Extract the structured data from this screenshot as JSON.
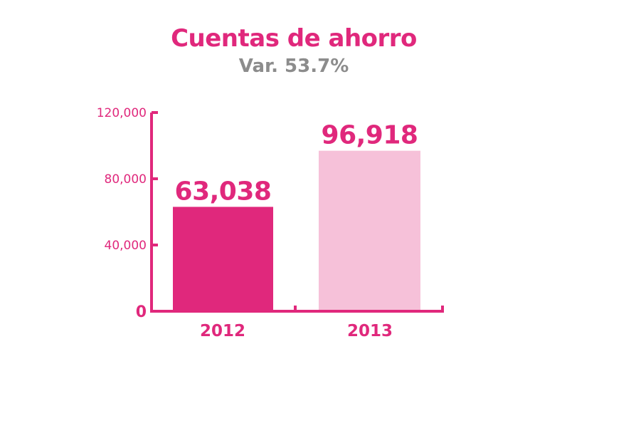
{
  "colors": {
    "accent": "#e0287c",
    "bar_2012": "#e0287c",
    "bar_2013": "#f6c1d9",
    "subtitle": "#8c8c8c"
  },
  "chart_data": {
    "type": "bar",
    "title": "Cuentas de ahorro",
    "subtitle": "Var. 53.7%",
    "categories": [
      "2012",
      "2013"
    ],
    "values": [
      63038,
      96918
    ],
    "value_labels": [
      "63,038",
      "96,918"
    ],
    "ylim": [
      0,
      120000
    ],
    "yticks": [
      0,
      40000,
      80000,
      120000
    ],
    "ytick_labels": [
      "0",
      "40,000",
      "80,000",
      "120,000"
    ],
    "xlabel": "",
    "ylabel": "",
    "grid": false,
    "legend": "none"
  }
}
